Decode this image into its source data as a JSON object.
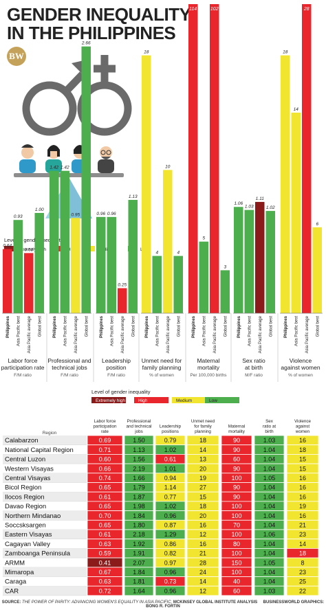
{
  "title": {
    "line1": "GENDER INEQUALITY",
    "line2": "IN THE PHILIPPINES"
  },
  "logo": "BW",
  "colors": {
    "extremely_high": "#8b1a1a",
    "high": "#e8262c",
    "medium": "#f1e530",
    "low": "#4cae4c"
  },
  "legend_top": {
    "title": "Level of gender inequality",
    "items": [
      {
        "label": "Extremely high",
        "level": "extremely_high"
      },
      {
        "label": "High",
        "level": "high"
      },
      {
        "label": "Medium",
        "level": "medium"
      },
      {
        "label": "Low",
        "level": "low"
      }
    ]
  },
  "legend_table": {
    "title": "Level of gender inequality",
    "items": [
      {
        "label": "Extremely high",
        "level": "extremely_high"
      },
      {
        "label": "High",
        "level": "high"
      },
      {
        "label": "Medium",
        "level": "medium"
      },
      {
        "label": "Low",
        "level": "low"
      }
    ]
  },
  "chart_data": [
    {
      "type": "bar",
      "categories": [
        "Philippines",
        "Asia Pacific best",
        "Asia Pacific average",
        "Global best"
      ],
      "groups": [
        {
          "label_lines": [
            "Labor force",
            "participation rate"
          ],
          "unit": "F/M ratio",
          "values": [
            0.64,
            0.93,
            0.6,
            1.0
          ],
          "labels": [
            "0.64",
            "0.93",
            "0.60",
            "1.00"
          ],
          "levels": [
            "high",
            "low",
            "high",
            "low"
          ],
          "scale_max": 3.0
        },
        {
          "label_lines": [
            "Professional and",
            "technical jobs"
          ],
          "unit": "F/M ratio",
          "values": [
            1.42,
            1.42,
            0.95,
            2.66
          ],
          "labels": [
            "1.42",
            "1.42",
            "0.95",
            "2.66"
          ],
          "levels": [
            "low",
            "low",
            "medium",
            "low"
          ],
          "scale_max": 3.0
        },
        {
          "label_lines": [
            "Leadership",
            "position"
          ],
          "unit": "F/M ratio",
          "values": [
            0.96,
            0.96,
            0.25,
            1.13
          ],
          "labels": [
            "0.96",
            "0.96",
            "0.25",
            "1.13"
          ],
          "levels": [
            "low",
            "low",
            "high",
            "low"
          ],
          "scale_max": 3.0
        },
        {
          "label_lines": [
            "Unmet need for",
            "family planning"
          ],
          "unit": "% of women",
          "values": [
            18,
            4,
            10,
            4
          ],
          "labels": [
            "18",
            "4",
            "10",
            "4"
          ],
          "levels": [
            "medium",
            "low",
            "medium",
            "low"
          ],
          "scale_max": 21
        },
        {
          "label_lines": [
            "Maternal",
            "mortality"
          ],
          "unit": "Per 100,000 births",
          "values": [
            114,
            5,
            102,
            3
          ],
          "labels": [
            "114",
            "5",
            "102",
            "3"
          ],
          "levels": [
            "high",
            "low",
            "high",
            "low"
          ],
          "scale_max": 21
        },
        {
          "label_lines": [
            "Sex ratio",
            "at birth"
          ],
          "unit": "M/F ratio",
          "values": [
            1.06,
            1.03,
            1.11,
            1.02
          ],
          "labels": [
            "1.06",
            "1.03",
            "1.11",
            "1.02"
          ],
          "levels": [
            "low",
            "low",
            "extremely_high",
            "low"
          ],
          "scale_max": 3.0
        },
        {
          "label_lines": [
            "Violence",
            "against women"
          ],
          "unit": "% of women",
          "values": [
            18,
            14,
            28,
            6
          ],
          "labels": [
            "18",
            "14",
            "28",
            "6"
          ],
          "levels": [
            "medium",
            "medium",
            "high",
            "medium"
          ],
          "scale_max": 21
        }
      ]
    },
    {
      "type": "table",
      "row_header": "Region",
      "columns": [
        {
          "lines": [
            "Labor force",
            "participation",
            "rate"
          ]
        },
        {
          "lines": [
            "Professional",
            "and technical",
            "jobs"
          ]
        },
        {
          "lines": [
            "Leadership",
            "positions"
          ]
        },
        {
          "lines": [
            "Unmet need",
            "for family",
            "planning"
          ]
        },
        {
          "lines": [
            "Maternal",
            "mortality"
          ]
        },
        {
          "lines": [
            "Sex",
            "ratio at",
            "birth"
          ]
        },
        {
          "lines": [
            "Violence",
            "against",
            "women"
          ]
        }
      ],
      "rows": [
        {
          "region": "Calabarzon",
          "values": [
            "0.69",
            "1.50",
            "0.79",
            "18",
            "90",
            "1.03",
            "16"
          ],
          "levels": [
            "high",
            "low",
            "medium",
            "medium",
            "high",
            "low",
            "medium"
          ]
        },
        {
          "region": "National Capital Region",
          "values": [
            "0.71",
            "1.13",
            "1.02",
            "14",
            "90",
            "1.04",
            "18"
          ],
          "levels": [
            "high",
            "low",
            "low",
            "medium",
            "high",
            "low",
            "medium"
          ]
        },
        {
          "region": "Central Luzon",
          "values": [
            "0.60",
            "1.56",
            "0.61",
            "13",
            "60",
            "1.04",
            "15"
          ],
          "levels": [
            "high",
            "low",
            "high",
            "medium",
            "high",
            "low",
            "medium"
          ]
        },
        {
          "region": "Western Visayas",
          "values": [
            "0.66",
            "2.19",
            "1.01",
            "20",
            "90",
            "1.04",
            "15"
          ],
          "levels": [
            "high",
            "low",
            "low",
            "medium",
            "high",
            "low",
            "medium"
          ]
        },
        {
          "region": "Central Visayas",
          "values": [
            "0.74",
            "1.66",
            "0.94",
            "19",
            "100",
            "1.05",
            "16"
          ],
          "levels": [
            "high",
            "low",
            "medium",
            "medium",
            "high",
            "low",
            "medium"
          ]
        },
        {
          "region": "Bicol Region",
          "values": [
            "0.65",
            "1.79",
            "1.14",
            "27",
            "90",
            "1.04",
            "16"
          ],
          "levels": [
            "high",
            "low",
            "medium",
            "medium",
            "high",
            "low",
            "medium"
          ]
        },
        {
          "region": "Ilocos Region",
          "values": [
            "0.61",
            "1.87",
            "0.77",
            "15",
            "90",
            "1.04",
            "16"
          ],
          "levels": [
            "high",
            "low",
            "medium",
            "medium",
            "high",
            "low",
            "medium"
          ]
        },
        {
          "region": "Davao Region",
          "values": [
            "0.65",
            "1.98",
            "1.02",
            "18",
            "100",
            "1.04",
            "19"
          ],
          "levels": [
            "high",
            "low",
            "low",
            "medium",
            "high",
            "low",
            "medium"
          ]
        },
        {
          "region": "Northern Mindanao",
          "values": [
            "0.70",
            "1.84",
            "0.96",
            "20",
            "100",
            "1.04",
            "16"
          ],
          "levels": [
            "high",
            "low",
            "low",
            "medium",
            "high",
            "low",
            "medium"
          ]
        },
        {
          "region": "Soccsksargen",
          "values": [
            "0.65",
            "1.80",
            "0.87",
            "16",
            "70",
            "1.04",
            "21"
          ],
          "levels": [
            "high",
            "low",
            "medium",
            "medium",
            "high",
            "low",
            "medium"
          ]
        },
        {
          "region": "Eastern Visayas",
          "values": [
            "0.61",
            "2.18",
            "1.29",
            "12",
            "100",
            "1.06",
            "23"
          ],
          "levels": [
            "high",
            "low",
            "low",
            "medium",
            "high",
            "low",
            "medium"
          ]
        },
        {
          "region": "Cagayan Valley",
          "values": [
            "0.63",
            "1.92",
            "0.86",
            "16",
            "80",
            "1.04",
            "14"
          ],
          "levels": [
            "high",
            "low",
            "medium",
            "medium",
            "high",
            "low",
            "medium"
          ]
        },
        {
          "region": "Zamboanga Peninsula",
          "values": [
            "0.59",
            "1.91",
            "0.82",
            "21",
            "100",
            "1.04",
            "18"
          ],
          "levels": [
            "high",
            "low",
            "medium",
            "medium",
            "high",
            "low",
            "high"
          ]
        },
        {
          "region": "ARMM",
          "values": [
            "0.41",
            "2.07",
            "0.97",
            "28",
            "150",
            "1.05",
            "8"
          ],
          "levels": [
            "extremely_high",
            "low",
            "medium",
            "medium",
            "high",
            "low",
            "medium"
          ]
        },
        {
          "region": "Mimaropa",
          "values": [
            "0.67",
            "1.84",
            "0.96",
            "24",
            "100",
            "1.04",
            "23"
          ],
          "levels": [
            "high",
            "low",
            "low",
            "medium",
            "high",
            "low",
            "medium"
          ]
        },
        {
          "region": "Caraga",
          "values": [
            "0.63",
            "1.81",
            "0.73",
            "14",
            "40",
            "1.04",
            "25"
          ],
          "levels": [
            "high",
            "low",
            "high",
            "medium",
            "high",
            "low",
            "medium"
          ]
        },
        {
          "region": "CAR",
          "values": [
            "0.72",
            "1.64",
            "0.96",
            "12",
            "60",
            "1.03",
            "22"
          ],
          "levels": [
            "high",
            "low",
            "low",
            "medium",
            "high",
            "low",
            "medium"
          ]
        }
      ]
    }
  ],
  "source": {
    "prefix": "SOURCE:",
    "text": "THE POWER OF PARITY: ADVANCING WOMEN'S EQUALITY IN ASIA PACIFIC,",
    "org": "MCKINSEY GLOBAL INSTITUTE ANALYSIS",
    "credit": "BUSINESSWORLD GRAPHICS: BONG R. FORTIN"
  }
}
